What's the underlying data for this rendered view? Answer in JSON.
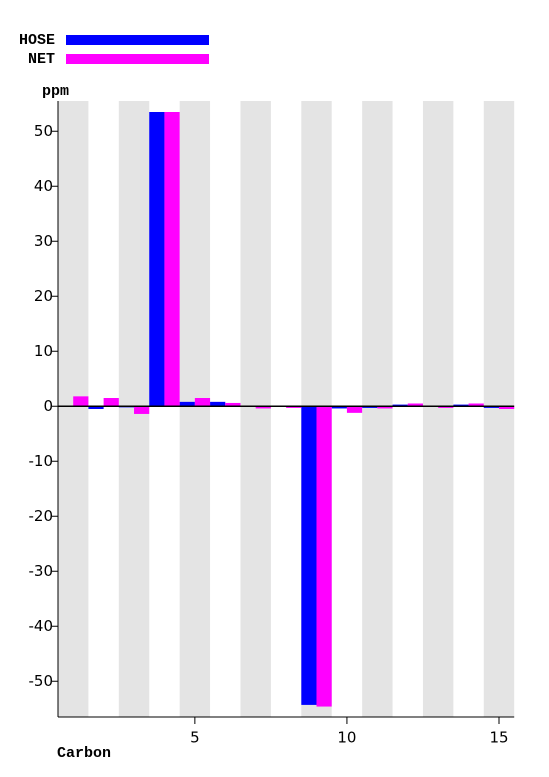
{
  "chart_data": {
    "type": "bar",
    "x_label": "Carbon",
    "y_label": "ppm",
    "x": [
      1,
      2,
      3,
      4,
      5,
      6,
      7,
      8,
      9,
      10,
      11,
      12,
      13,
      14,
      15
    ],
    "series": [
      {
        "name": "HOSE",
        "color": "#0000ff",
        "values": [
          0.1,
          -0.5,
          -0.2,
          53.5,
          0.8,
          0.8,
          0.1,
          0.1,
          -54.3,
          -0.4,
          -0.3,
          0.3,
          0.1,
          0.3,
          -0.3
        ]
      },
      {
        "name": "NET",
        "color": "#ff00ff",
        "values": [
          1.8,
          1.5,
          -1.4,
          53.5,
          1.5,
          0.6,
          -0.4,
          -0.3,
          -54.6,
          -1.2,
          -0.4,
          0.5,
          -0.3,
          0.5,
          -0.5
        ]
      }
    ],
    "xlim": [
      0.5,
      15.5
    ],
    "xticks": [
      5,
      10,
      15
    ],
    "ylim": [
      -56.5,
      55.5
    ],
    "yticks": [
      -50,
      -40,
      -30,
      -20,
      -10,
      0,
      10,
      20,
      30,
      40,
      50
    ],
    "legend": "top-left"
  }
}
